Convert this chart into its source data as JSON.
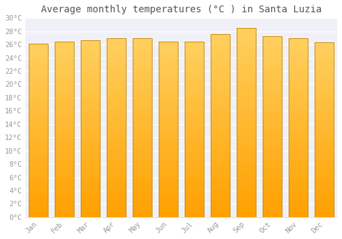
{
  "title": "Average monthly temperatures (°C ) in Santa Luzia",
  "months": [
    "Jan",
    "Feb",
    "Mar",
    "Apr",
    "May",
    "Jun",
    "Jul",
    "Aug",
    "Sep",
    "Oct",
    "Nov",
    "Dec"
  ],
  "values": [
    26.1,
    26.4,
    26.6,
    26.9,
    26.9,
    26.4,
    26.4,
    27.6,
    28.5,
    27.3,
    26.9,
    26.3
  ],
  "ylim": [
    0,
    30
  ],
  "yticks": [
    0,
    2,
    4,
    6,
    8,
    10,
    12,
    14,
    16,
    18,
    20,
    22,
    24,
    26,
    28,
    30
  ],
  "bar_color_light": "#FFD060",
  "bar_color_dark": "#FFA000",
  "bar_edge_color": "#CC8800",
  "background_color": "#FFFFFF",
  "plot_bg_color": "#F0F0F8",
  "grid_color": "#FFFFFF",
  "title_fontsize": 10,
  "tick_fontsize": 7.5,
  "tick_color": "#999999",
  "title_color": "#555555",
  "font_family": "monospace"
}
